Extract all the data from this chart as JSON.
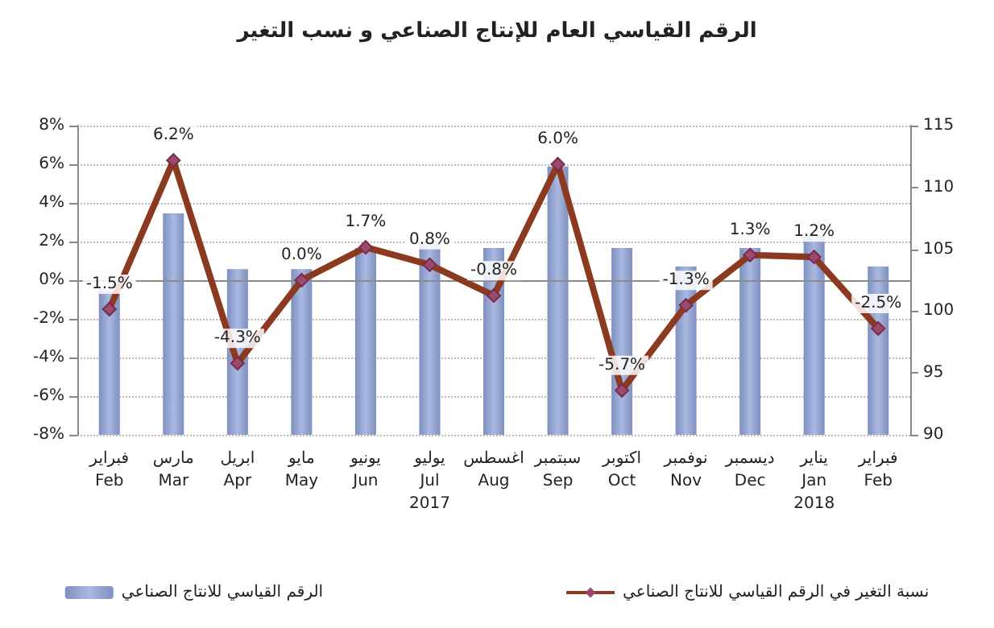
{
  "chart_data": {
    "type": "bar",
    "title": "الرقم القياسي العام للإنتاج الصناعي و نسب التغير",
    "categories": [
      "فبراير\nFeb",
      "مارس\nMar",
      "ابريل\nApr",
      "مايو\nMay",
      "يونيو\nJun",
      "يوليو\nJul\n2017",
      "اغسطس\nAug",
      "سبتمبر\nSep",
      "اكتوبر\nOct",
      "نوفمبر\nNov",
      "ديسمبر\nDec",
      "يناير\nJan\n2018",
      "فبراير\nFeb"
    ],
    "series": [
      {
        "name": "الرقم القياسي للانتاج الصناعي",
        "axis": "y2",
        "color": "#a9b9e0",
        "values": [
          101.7,
          107.9,
          103.4,
          103.4,
          105.1,
          105.7,
          105.1,
          111.7,
          105.1,
          103.6,
          105.1,
          106.1,
          103.6
        ]
      },
      {
        "name": "نسبة التغير في الرقم القياسي للانتاج الصناعي",
        "type": "line",
        "axis": "y",
        "color": "#8b3a1f",
        "marker": "diamond",
        "values": [
          -1.5,
          6.2,
          -4.3,
          0.0,
          1.7,
          0.8,
          -0.8,
          6.0,
          -5.7,
          -1.3,
          1.3,
          1.2,
          -2.5
        ],
        "value_labels": [
          "-1.5%",
          "6.2%",
          "-4.3%",
          "0.0%",
          "1.7%",
          "0.8%",
          "-0.8%",
          "6.0%",
          "-5.7%",
          "-1.3%",
          "1.3%",
          "1.2%",
          "-2.5%"
        ]
      }
    ],
    "ylim": [
      -8,
      8
    ],
    "yticks": [
      {
        "value": -8,
        "label": "-8%"
      },
      {
        "value": -6,
        "label": "-6%"
      },
      {
        "value": -4,
        "label": "-4%"
      },
      {
        "value": -2,
        "label": "-2%"
      },
      {
        "value": 0,
        "label": "0%"
      },
      {
        "value": 2,
        "label": "2%"
      },
      {
        "value": 4,
        "label": "4%"
      },
      {
        "value": 6,
        "label": "6%"
      },
      {
        "value": 8,
        "label": "8%"
      }
    ],
    "y2lim": [
      90,
      115
    ],
    "y2ticks": [
      90,
      95,
      100,
      105,
      110,
      115
    ],
    "ref_lines": [
      {
        "axis": "y",
        "value": 0,
        "color": "#8c8c8c"
      }
    ],
    "grid": "y",
    "legend": "bottom"
  }
}
